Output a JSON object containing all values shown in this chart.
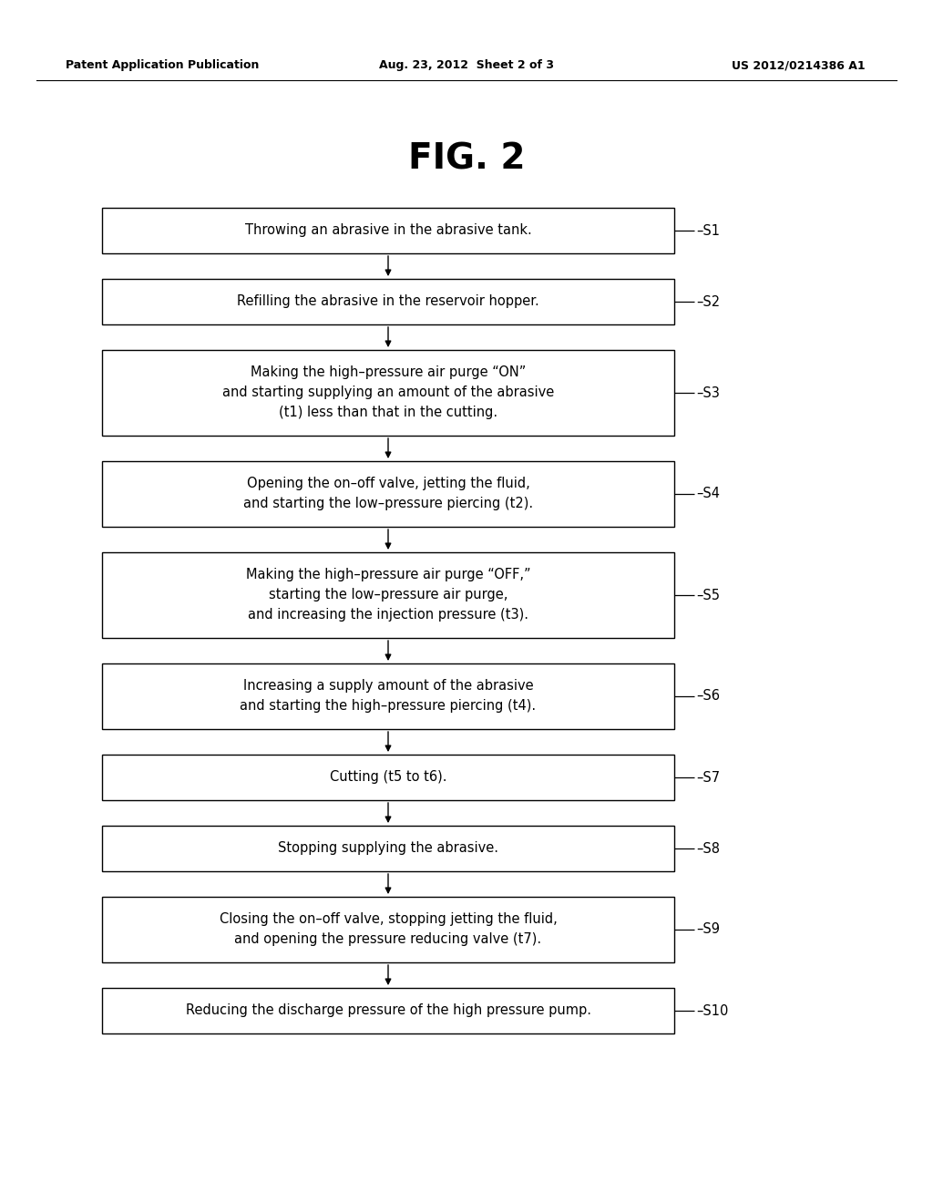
{
  "title": "FIG. 2",
  "header_left": "Patent Application Publication",
  "header_center": "Aug. 23, 2012  Sheet 2 of 3",
  "header_right": "US 2012/0214386 A1",
  "steps": [
    {
      "label": "S1",
      "lines": [
        "Throwing an abrasive in the abrasive tank."
      ],
      "n_lines": 1
    },
    {
      "label": "S2",
      "lines": [
        "Refilling the abrasive in the reservoir hopper."
      ],
      "n_lines": 1
    },
    {
      "label": "S3",
      "lines": [
        "Making the high–pressure air purge “ON”",
        "and starting supplying an amount of the abrasive",
        "(t1) less than that in the cutting."
      ],
      "n_lines": 3
    },
    {
      "label": "S4",
      "lines": [
        "Opening the on–off valve, jetting the fluid,",
        "and starting the low–pressure piercing (t2)."
      ],
      "n_lines": 2
    },
    {
      "label": "S5",
      "lines": [
        "Making the high–pressure air purge “OFF,”",
        "starting the low–pressure air purge,",
        "and increasing the injection pressure (t3)."
      ],
      "n_lines": 3
    },
    {
      "label": "S6",
      "lines": [
        "Increasing a supply amount of the abrasive",
        "and starting the high–pressure piercing (t4)."
      ],
      "n_lines": 2
    },
    {
      "label": "S7",
      "lines": [
        "Cutting (t5 to t6)."
      ],
      "n_lines": 1
    },
    {
      "label": "S8",
      "lines": [
        "Stopping supplying the abrasive."
      ],
      "n_lines": 1
    },
    {
      "label": "S9",
      "lines": [
        "Closing the on–off valve, stopping jetting the fluid,",
        "and opening the pressure reducing valve (t7)."
      ],
      "n_lines": 2
    },
    {
      "label": "S10",
      "lines": [
        "Reducing the discharge pressure of the high pressure pump."
      ],
      "n_lines": 1
    }
  ],
  "background_color": "#ffffff",
  "box_edge_color": "#000000",
  "text_color": "#000000",
  "arrow_color": "#000000"
}
